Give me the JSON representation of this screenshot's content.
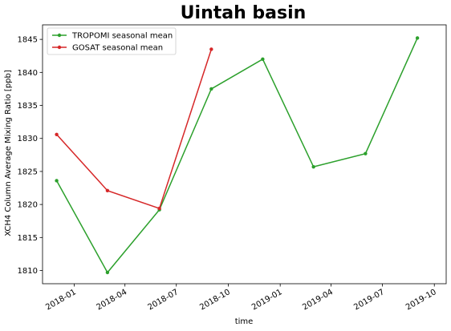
{
  "chart_data": {
    "type": "line",
    "title": "Uintah basin",
    "xlabel": "time",
    "ylabel": "XCH4 Column Average Mixing Ratio [ppb]",
    "x_axis_type": "date",
    "xlim": [
      "2017-11-06",
      "2019-10-22"
    ],
    "ylim": [
      1808.0,
      1847.2
    ],
    "grid": false,
    "legend_position": "top-left",
    "x_ticks": [
      {
        "date": "2018-01-01",
        "label": "2018-01"
      },
      {
        "date": "2018-04-01",
        "label": "2018-04"
      },
      {
        "date": "2018-07-01",
        "label": "2018-07"
      },
      {
        "date": "2018-10-01",
        "label": "2018-10"
      },
      {
        "date": "2019-01-01",
        "label": "2019-01"
      },
      {
        "date": "2019-04-01",
        "label": "2019-04"
      },
      {
        "date": "2019-07-01",
        "label": "2019-07"
      },
      {
        "date": "2019-10-01",
        "label": "2019-10"
      }
    ],
    "y_ticks": [
      {
        "value": 1810,
        "label": "1810"
      },
      {
        "value": 1815,
        "label": "1815"
      },
      {
        "value": 1820,
        "label": "1820"
      },
      {
        "value": 1825,
        "label": "1825"
      },
      {
        "value": 1830,
        "label": "1830"
      },
      {
        "value": 1835,
        "label": "1835"
      },
      {
        "value": 1840,
        "label": "1840"
      },
      {
        "value": 1845,
        "label": "1845"
      }
    ],
    "series": [
      {
        "name": "TROPOMI seasonal mean",
        "color": "#2ca02c",
        "points": [
          {
            "x": "2017-12-01",
            "y": 1823.6
          },
          {
            "x": "2018-03-01",
            "y": 1809.7
          },
          {
            "x": "2018-06-01",
            "y": 1819.2
          },
          {
            "x": "2018-09-01",
            "y": 1837.5
          },
          {
            "x": "2018-12-01",
            "y": 1842.0
          },
          {
            "x": "2019-03-01",
            "y": 1825.7
          },
          {
            "x": "2019-06-01",
            "y": 1827.7
          },
          {
            "x": "2019-09-01",
            "y": 1845.2
          }
        ]
      },
      {
        "name": "GOSAT seasonal mean",
        "color": "#d62728",
        "points": [
          {
            "x": "2017-12-01",
            "y": 1830.6
          },
          {
            "x": "2018-03-01",
            "y": 1822.1
          },
          {
            "x": "2018-06-01",
            "y": 1819.4
          },
          {
            "x": "2018-09-01",
            "y": 1843.5
          }
        ]
      }
    ]
  }
}
